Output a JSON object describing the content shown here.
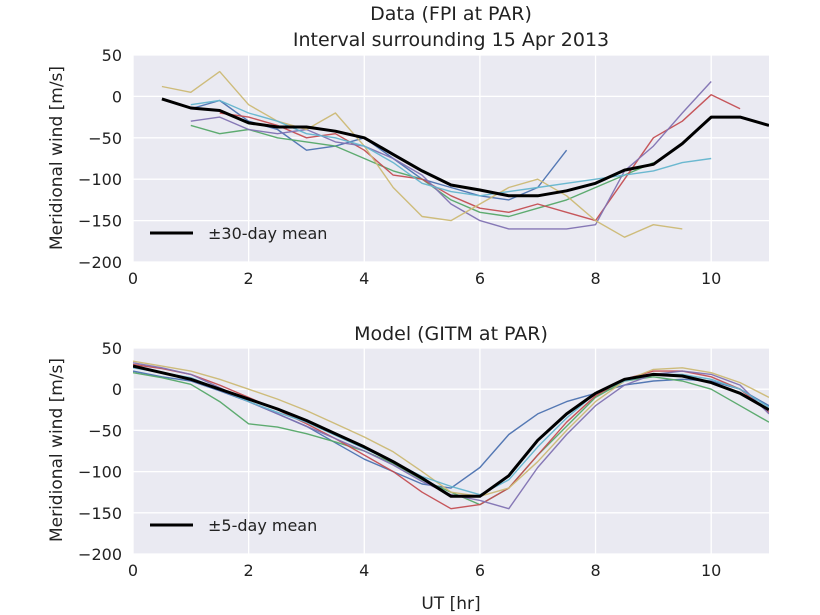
{
  "chart_data": [
    {
      "type": "line",
      "title": "Data (FPI at PAR)",
      "subtitle": "Interval surrounding 15 Apr 2013",
      "xlabel": "",
      "ylabel": "Meridional wind [m/s]",
      "xlim": [
        0,
        11
      ],
      "ylim": [
        -200,
        50
      ],
      "xticks": [
        "0",
        "2",
        "4",
        "6",
        "8",
        "10"
      ],
      "yticks": [
        "50",
        "0",
        "−50",
        "−100",
        "−150",
        "−200"
      ],
      "grid": true,
      "legend": {
        "position": "lower-left",
        "entries": [
          "±30-day mean"
        ]
      },
      "mean": {
        "name": "±30-day mean",
        "color": "#000000",
        "x": [
          0.5,
          1.0,
          1.5,
          2.0,
          2.5,
          3.0,
          3.5,
          4.0,
          4.5,
          5.0,
          5.5,
          6.0,
          6.5,
          7.0,
          7.5,
          8.0,
          8.5,
          9.0,
          9.5,
          10.0,
          10.5,
          11.0
        ],
        "y": [
          -3,
          -14,
          -17,
          -32,
          -37,
          -37,
          -42,
          -50,
          -70,
          -90,
          -107,
          -113,
          -120,
          -120,
          -114,
          -105,
          -89,
          -82,
          -57,
          -25,
          -25,
          -35
        ]
      },
      "series": [
        {
          "color": "#4c72b0",
          "x": [
            1.0,
            1.5,
            2.0,
            2.5,
            3.0,
            3.5,
            4.0,
            4.5,
            5.0,
            5.5,
            6.0,
            6.5,
            7.0,
            7.5
          ],
          "y": [
            -15,
            -5,
            -30,
            -40,
            -65,
            -60,
            -50,
            -75,
            -100,
            -110,
            -120,
            -125,
            -110,
            -65
          ]
        },
        {
          "color": "#55a868",
          "x": [
            1.0,
            1.5,
            2.0,
            2.5,
            3.0,
            3.5,
            4.0,
            4.5,
            5.0,
            5.5,
            6.0,
            6.5,
            7.0,
            7.5,
            8.0,
            8.5,
            9.0
          ],
          "y": [
            -35,
            -45,
            -40,
            -50,
            -55,
            -60,
            -75,
            -90,
            -100,
            -125,
            -140,
            -145,
            -135,
            -125,
            -110,
            -95,
            -80
          ]
        },
        {
          "color": "#c44e52",
          "x": [
            1.5,
            2.0,
            2.5,
            3.0,
            3.5,
            4.0,
            4.5,
            5.0,
            5.5,
            6.0,
            6.5,
            7.0,
            7.5,
            8.0,
            8.5,
            9.0,
            9.5,
            10.0,
            10.5
          ],
          "y": [
            -20,
            -25,
            -35,
            -50,
            -45,
            -65,
            -95,
            -100,
            -120,
            -135,
            -140,
            -130,
            -140,
            -150,
            -100,
            -50,
            -30,
            2,
            -15
          ]
        },
        {
          "color": "#8172b2",
          "x": [
            1.0,
            1.5,
            2.0,
            2.5,
            3.0,
            3.5,
            4.0,
            4.5,
            5.0,
            5.5,
            6.0,
            6.5,
            7.0,
            7.5,
            8.0,
            8.5,
            9.0,
            9.5,
            10.0
          ],
          "y": [
            -30,
            -25,
            -40,
            -45,
            -40,
            -55,
            -60,
            -75,
            -95,
            -130,
            -150,
            -160,
            -160,
            -160,
            -155,
            -90,
            -60,
            -20,
            18
          ]
        },
        {
          "color": "#ccb974",
          "x": [
            0.5,
            1.0,
            1.5,
            2.0,
            2.5,
            3.0,
            3.5,
            4.0,
            4.5,
            5.0,
            5.5,
            6.0,
            6.5,
            7.0,
            7.5,
            8.0,
            8.5,
            9.0,
            9.5
          ],
          "y": [
            12,
            5,
            30,
            -10,
            -30,
            -40,
            -20,
            -60,
            -110,
            -145,
            -150,
            -130,
            -110,
            -100,
            -120,
            -150,
            -170,
            -155,
            -160
          ]
        },
        {
          "color": "#64b5cd",
          "x": [
            1.0,
            1.5,
            2.0,
            2.5,
            3.0,
            3.5,
            4.0,
            4.5,
            5.0,
            5.5,
            6.0,
            6.5,
            7.0,
            7.5,
            8.0,
            8.5,
            9.0,
            9.5,
            10.0
          ],
          "y": [
            -10,
            -5,
            -20,
            -30,
            -45,
            -50,
            -60,
            -80,
            -105,
            -115,
            -120,
            -115,
            -110,
            -105,
            -100,
            -95,
            -90,
            -80,
            -75
          ]
        }
      ]
    },
    {
      "type": "line",
      "title": "Model (GITM at PAR)",
      "xlabel": "UT [hr]",
      "ylabel": "Meridional wind [m/s]",
      "xlim": [
        0,
        11
      ],
      "ylim": [
        -200,
        50
      ],
      "xticks": [
        "0",
        "2",
        "4",
        "6",
        "8",
        "10"
      ],
      "yticks": [
        "50",
        "0",
        "−50",
        "−100",
        "−150",
        "−200"
      ],
      "grid": true,
      "legend": {
        "position": "lower-left",
        "entries": [
          "±5-day mean"
        ]
      },
      "mean": {
        "name": "±5-day mean",
        "color": "#000000",
        "x": [
          0,
          0.5,
          1.0,
          1.5,
          2.0,
          2.5,
          3.0,
          3.5,
          4.0,
          4.5,
          5.0,
          5.5,
          6.0,
          6.5,
          7.0,
          7.5,
          8.0,
          8.5,
          9.0,
          9.5,
          10.0,
          10.5,
          11.0
        ],
        "y": [
          28,
          20,
          12,
          0,
          -12,
          -24,
          -38,
          -54,
          -70,
          -88,
          -108,
          -130,
          -130,
          -105,
          -62,
          -30,
          -5,
          12,
          18,
          16,
          8,
          -5,
          -25
        ]
      },
      "series": [
        {
          "color": "#4c72b0",
          "x": [
            0,
            0.5,
            1.0,
            1.5,
            2.0,
            2.5,
            3.0,
            3.5,
            4.0,
            4.5,
            5.0,
            5.5,
            6.0,
            6.5,
            7.0,
            7.5,
            8.0,
            8.5,
            9.0,
            9.5,
            10.0,
            10.5,
            11.0
          ],
          "y": [
            22,
            15,
            10,
            -2,
            -15,
            -30,
            -45,
            -65,
            -85,
            -100,
            -115,
            -120,
            -95,
            -55,
            -30,
            -15,
            -5,
            5,
            10,
            12,
            10,
            0,
            -20
          ]
        },
        {
          "color": "#55a868",
          "x": [
            0,
            0.5,
            1.0,
            1.5,
            2.0,
            2.5,
            3.0,
            3.5,
            4.0,
            4.5,
            5.0,
            5.5,
            6.0,
            6.5,
            7.0,
            7.5,
            8.0,
            8.5,
            9.0,
            9.5,
            10.0,
            10.5,
            11.0
          ],
          "y": [
            20,
            14,
            6,
            -15,
            -42,
            -46,
            -54,
            -64,
            -75,
            -90,
            -110,
            -125,
            -140,
            -120,
            -80,
            -45,
            -10,
            10,
            15,
            10,
            0,
            -20,
            -40
          ]
        },
        {
          "color": "#c44e52",
          "x": [
            0,
            0.5,
            1.0,
            1.5,
            2.0,
            2.5,
            3.0,
            3.5,
            4.0,
            4.5,
            5.0,
            5.5,
            6.0,
            6.5,
            7.0,
            7.5,
            8.0,
            8.5,
            9.0,
            9.5,
            10.0,
            10.5,
            11.0
          ],
          "y": [
            30,
            25,
            18,
            5,
            -10,
            -25,
            -42,
            -60,
            -80,
            -100,
            -125,
            -145,
            -140,
            -120,
            -80,
            -40,
            -8,
            12,
            22,
            22,
            15,
            0,
            -28
          ]
        },
        {
          "color": "#8172b2",
          "x": [
            0,
            0.5,
            1.0,
            1.5,
            2.0,
            2.5,
            3.0,
            3.5,
            4.0,
            4.5,
            5.0,
            5.5,
            6.0,
            6.5,
            7.0,
            7.5,
            8.0,
            8.5,
            9.0,
            9.5,
            10.0,
            10.5,
            11.0
          ],
          "y": [
            32,
            26,
            18,
            2,
            -15,
            -30,
            -45,
            -60,
            -75,
            -92,
            -112,
            -128,
            -135,
            -145,
            -95,
            -55,
            -20,
            5,
            18,
            22,
            18,
            5,
            -30
          ]
        },
        {
          "color": "#ccb974",
          "x": [
            0,
            0.5,
            1.0,
            1.5,
            2.0,
            2.5,
            3.0,
            3.5,
            4.0,
            4.5,
            5.0,
            5.5,
            6.0,
            6.5,
            7.0,
            7.5,
            8.0,
            8.5,
            9.0,
            9.5,
            10.0,
            10.5,
            11.0
          ],
          "y": [
            34,
            28,
            22,
            12,
            0,
            -12,
            -26,
            -42,
            -58,
            -76,
            -100,
            -125,
            -130,
            -120,
            -88,
            -50,
            -15,
            10,
            24,
            26,
            20,
            8,
            -10
          ]
        },
        {
          "color": "#64b5cd",
          "x": [
            0,
            0.5,
            1.0,
            1.5,
            2.0,
            2.5,
            3.0,
            3.5,
            4.0,
            4.5,
            5.0,
            5.5,
            6.0,
            6.5,
            7.0,
            7.5,
            8.0,
            8.5,
            9.0,
            9.5,
            10.0,
            10.5,
            11.0
          ],
          "y": [
            26,
            20,
            14,
            0,
            -15,
            -28,
            -40,
            -56,
            -72,
            -88,
            -106,
            -118,
            -128,
            -110,
            -70,
            -35,
            -5,
            10,
            18,
            18,
            12,
            0,
            -22
          ]
        }
      ]
    }
  ]
}
